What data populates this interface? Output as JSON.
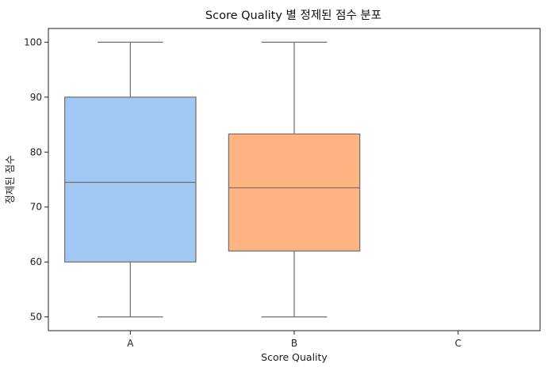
{
  "chart_data": {
    "type": "box",
    "title": "Score Quality 별 정제된 점수 분포",
    "xlabel": "Score Quality",
    "ylabel": "정제된 점수",
    "categories": [
      "A",
      "B",
      "C"
    ],
    "ylim": [
      47.5,
      102.5
    ],
    "yticks": [
      50,
      60,
      70,
      80,
      90,
      100
    ],
    "grid": false,
    "boxes": [
      {
        "category": "A",
        "min": 50,
        "q1": 60,
        "median": 74.5,
        "q3": 90,
        "max": 100,
        "color": "#a1c9f4"
      },
      {
        "category": "B",
        "min": 50,
        "q1": 62,
        "median": 73.5,
        "q3": 83.3,
        "max": 100,
        "color": "#ffb482"
      }
    ]
  }
}
